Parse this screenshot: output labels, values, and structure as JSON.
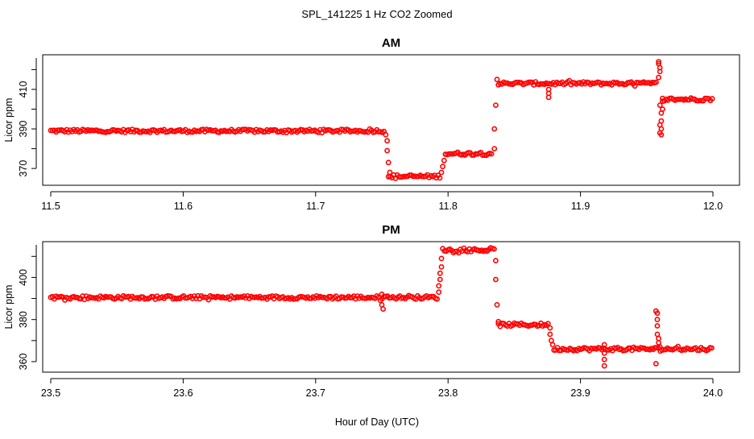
{
  "figure": {
    "title": "SPL_141225  1 Hz CO2 Zoomed",
    "xlabel": "Hour of Day (UTC)"
  },
  "colors": {
    "points": "#ff0000",
    "axes": "#000000",
    "background": "#ffffff"
  },
  "chart_data": [
    {
      "type": "scatter",
      "title": "AM",
      "xlabel": "",
      "ylabel": "Licor ppm",
      "xlim": [
        11.5,
        12.0
      ],
      "ylim": [
        361.5,
        427.5
      ],
      "x_ticks": [
        "11.5",
        "11.6",
        "11.7",
        "11.8",
        "11.9",
        "12.0"
      ],
      "y_ticks": [
        "370",
        "390",
        "410"
      ],
      "grid": false,
      "marker": "open-circle",
      "segments": [
        {
          "x_start": 11.5,
          "x_end": 11.752,
          "y": 389
        },
        {
          "x_start": 11.755,
          "x_end": 11.795,
          "y": 366
        },
        {
          "x_start": 11.798,
          "x_end": 11.834,
          "y": 377.5
        },
        {
          "x_start": 11.838,
          "x_end": 11.958,
          "y": 413
        },
        {
          "x_start": 11.962,
          "x_end": 12.0,
          "y": 405
        }
      ],
      "excursions": [
        {
          "x": 11.753,
          "y": 387
        },
        {
          "x": 11.754,
          "y": 384
        },
        {
          "x": 11.754,
          "y": 379
        },
        {
          "x": 11.755,
          "y": 373
        },
        {
          "x": 11.756,
          "y": 368
        },
        {
          "x": 11.795,
          "y": 368
        },
        {
          "x": 11.796,
          "y": 371
        },
        {
          "x": 11.797,
          "y": 374
        },
        {
          "x": 11.835,
          "y": 380
        },
        {
          "x": 11.835,
          "y": 390
        },
        {
          "x": 11.836,
          "y": 402
        },
        {
          "x": 11.837,
          "y": 415
        },
        {
          "x": 11.876,
          "y": 410
        },
        {
          "x": 11.876,
          "y": 408
        },
        {
          "x": 11.876,
          "y": 406
        },
        {
          "x": 11.959,
          "y": 424
        },
        {
          "x": 11.959,
          "y": 423
        },
        {
          "x": 11.96,
          "y": 421
        },
        {
          "x": 11.96,
          "y": 419
        },
        {
          "x": 11.959,
          "y": 416
        },
        {
          "x": 11.96,
          "y": 402
        },
        {
          "x": 11.961,
          "y": 398
        },
        {
          "x": 11.961,
          "y": 394
        },
        {
          "x": 11.96,
          "y": 392
        },
        {
          "x": 11.961,
          "y": 390
        },
        {
          "x": 11.96,
          "y": 388
        },
        {
          "x": 11.961,
          "y": 387
        },
        {
          "x": 11.962,
          "y": 400
        },
        {
          "x": 11.962,
          "y": 404
        }
      ]
    },
    {
      "type": "scatter",
      "title": "PM",
      "xlabel": "Hour of Day (UTC)",
      "ylabel": "Licor ppm",
      "xlim": [
        23.5,
        24.0
      ],
      "ylim": [
        355,
        417
      ],
      "x_ticks": [
        "23.5",
        "23.6",
        "23.7",
        "23.8",
        "23.9",
        "24.0"
      ],
      "y_ticks": [
        "360",
        "380",
        "400"
      ],
      "grid": false,
      "marker": "open-circle",
      "segments": [
        {
          "x_start": 23.5,
          "x_end": 23.792,
          "y": 390.5
        },
        {
          "x_start": 23.796,
          "x_end": 23.835,
          "y": 413
        },
        {
          "x_start": 23.838,
          "x_end": 23.876,
          "y": 377.5
        },
        {
          "x_start": 23.88,
          "x_end": 24.0,
          "y": 366
        }
      ],
      "excursions": [
        {
          "x": 23.75,
          "y": 392
        },
        {
          "x": 23.75,
          "y": 387
        },
        {
          "x": 23.751,
          "y": 385
        },
        {
          "x": 23.793,
          "y": 393
        },
        {
          "x": 23.793,
          "y": 396
        },
        {
          "x": 23.794,
          "y": 399
        },
        {
          "x": 23.794,
          "y": 402
        },
        {
          "x": 23.795,
          "y": 405
        },
        {
          "x": 23.795,
          "y": 409
        },
        {
          "x": 23.836,
          "y": 408
        },
        {
          "x": 23.836,
          "y": 399
        },
        {
          "x": 23.837,
          "y": 387
        },
        {
          "x": 23.838,
          "y": 379
        },
        {
          "x": 23.877,
          "y": 376
        },
        {
          "x": 23.877,
          "y": 373
        },
        {
          "x": 23.878,
          "y": 370
        },
        {
          "x": 23.879,
          "y": 368
        },
        {
          "x": 23.918,
          "y": 368
        },
        {
          "x": 23.918,
          "y": 364
        },
        {
          "x": 23.918,
          "y": 361
        },
        {
          "x": 23.918,
          "y": 358
        },
        {
          "x": 23.957,
          "y": 384
        },
        {
          "x": 23.958,
          "y": 383
        },
        {
          "x": 23.958,
          "y": 380
        },
        {
          "x": 23.958,
          "y": 377
        },
        {
          "x": 23.958,
          "y": 373
        },
        {
          "x": 23.959,
          "y": 371
        },
        {
          "x": 23.959,
          "y": 369
        },
        {
          "x": 23.957,
          "y": 359
        },
        {
          "x": 23.96,
          "y": 367
        }
      ]
    }
  ]
}
